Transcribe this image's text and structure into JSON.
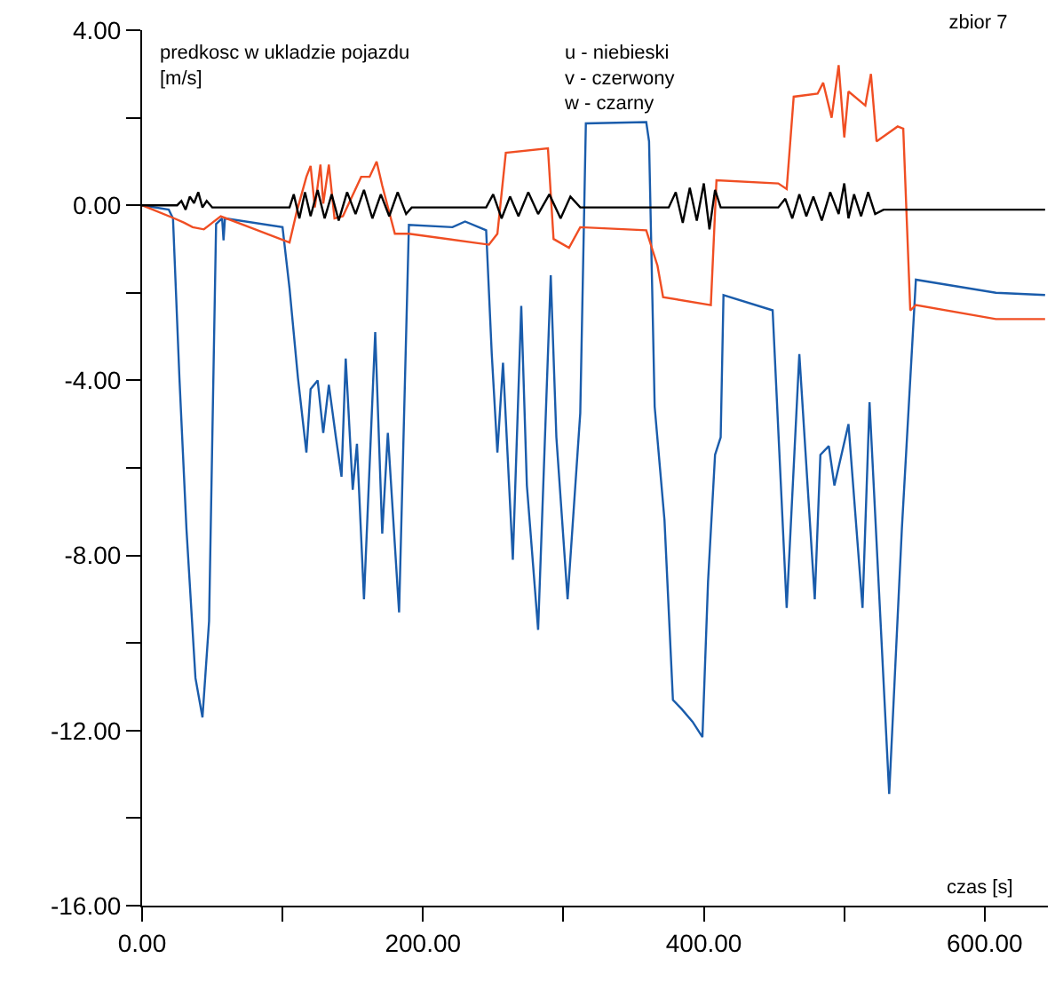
{
  "chart_data": {
    "type": "line",
    "title": "zbior 7",
    "ylabel": "predkosc w ukladzie pojazdu\n[m/s]",
    "xlabel": "czas [s]",
    "annotations": [
      "u - niebieski\nv - czerwony\nw - czarny"
    ],
    "xlim": [
      0,
      645
    ],
    "xticks": [
      {
        "value": 0,
        "label": "0.00"
      },
      {
        "value": 100,
        "label": null
      },
      {
        "value": 200,
        "label": "200.00"
      },
      {
        "value": 300,
        "label": null
      },
      {
        "value": 400,
        "label": "400.00"
      },
      {
        "value": 500,
        "label": null
      },
      {
        "value": 600,
        "label": "600.00"
      }
    ],
    "ylim": [
      -16,
      4
    ],
    "yticks": [
      {
        "value": -16,
        "label": "-16.00"
      },
      {
        "value": -14,
        "label": null
      },
      {
        "value": -12,
        "label": "-12.00"
      },
      {
        "value": -10,
        "label": null
      },
      {
        "value": -8,
        "label": "-8.00"
      },
      {
        "value": -6,
        "label": null
      },
      {
        "value": -4,
        "label": "-4.00"
      },
      {
        "value": -2,
        "label": null
      },
      {
        "value": 0,
        "label": "0.00"
      },
      {
        "value": 2,
        "label": null
      },
      {
        "value": 4,
        "label": "4.00"
      }
    ],
    "marker": "none",
    "line_style": "solid",
    "series": [
      {
        "color": "#1a5cab",
        "x": [
          0,
          19,
          22,
          26.6,
          31.6,
          38,
          43,
          47.7,
          52.7,
          57,
          58,
          59,
          100,
          105,
          111,
          117,
          120,
          125,
          129,
          133,
          138,
          142,
          145,
          150,
          153,
          158,
          166,
          171,
          175,
          183,
          190,
          221,
          230,
          245,
          249,
          253,
          257,
          264,
          270,
          274,
          282,
          291,
          295,
          303,
          312,
          316,
          359,
          361,
          365,
          372,
          378,
          384,
          392,
          399,
          403,
          408,
          412,
          414,
          449,
          459,
          468,
          479,
          483,
          489,
          493,
          503,
          513,
          518,
          532,
          541,
          551,
          608,
          643
        ],
        "values": [
          0,
          -0.1,
          -0.3,
          -3.95,
          -7.4,
          -10.8,
          -11.7,
          -9.5,
          -0.43,
          -0.3,
          -0.8,
          -0.3,
          -0.5,
          -1.9,
          -3.95,
          -5.65,
          -4.2,
          -4.0,
          -5.2,
          -4.1,
          -5.3,
          -6.2,
          -3.5,
          -6.5,
          -5.45,
          -9.0,
          -2.9,
          -7.5,
          -5.2,
          -9.3,
          -0.45,
          -0.5,
          -0.37,
          -0.57,
          -3.4,
          -5.65,
          -3.6,
          -8.1,
          -2.3,
          -6.4,
          -9.7,
          -1.6,
          -5.3,
          -9.0,
          -4.75,
          1.87,
          1.9,
          1.46,
          -4.6,
          -7.2,
          -11.3,
          -11.5,
          -11.8,
          -12.15,
          -8.6,
          -5.7,
          -5.3,
          -2.05,
          -2.4,
          -9.2,
          -3.4,
          -9.0,
          -5.7,
          -5.5,
          -6.4,
          -5.0,
          -9.2,
          -4.5,
          -13.45,
          -7.4,
          -1.7,
          -2.0,
          -2.05
        ]
      },
      {
        "color": "#f04e23",
        "x": [
          0,
          23,
          30,
          36,
          44,
          50,
          56,
          105,
          110,
          117,
          120,
          123,
          127,
          129,
          133,
          137,
          143,
          156,
          162,
          167,
          171,
          180,
          187,
          190,
          247,
          253,
          259,
          289,
          293,
          304,
          312,
          359,
          367,
          371,
          405,
          409,
          453,
          459,
          464,
          481,
          485,
          491,
          496,
          500,
          503,
          515,
          519,
          523,
          538,
          542,
          547,
          551,
          608,
          643
        ],
        "values": [
          0,
          -0.3,
          -0.4,
          -0.5,
          -0.55,
          -0.4,
          -0.25,
          -0.85,
          -0.16,
          0.65,
          0.9,
          -0.05,
          0.93,
          0.04,
          0.93,
          -0.3,
          -0.25,
          0.65,
          0.65,
          1.0,
          0.45,
          -0.65,
          -0.65,
          -0.65,
          -0.9,
          -0.65,
          1.2,
          1.3,
          -0.77,
          -0.97,
          -0.5,
          -0.57,
          -1.38,
          -2.1,
          -2.28,
          0.57,
          0.5,
          0.37,
          2.48,
          2.55,
          2.8,
          2.0,
          3.2,
          1.55,
          2.6,
          2.28,
          3.0,
          1.46,
          1.8,
          1.75,
          -2.4,
          -2.28,
          -2.6,
          -2.6
        ]
      },
      {
        "color": "#000000",
        "x": [
          0,
          25,
          28,
          31,
          34,
          37,
          40,
          43,
          46,
          50,
          105,
          108,
          112,
          116,
          120,
          125,
          130,
          135,
          140,
          146,
          152,
          158,
          164,
          170,
          176,
          182,
          188,
          192,
          245,
          250,
          256,
          262,
          268,
          275,
          282,
          290,
          298,
          305,
          312,
          375,
          380,
          385,
          390,
          395,
          400,
          404,
          408,
          412,
          453,
          458,
          463,
          468,
          473,
          478,
          484,
          490,
          496,
          500,
          503,
          507,
          512,
          517,
          522,
          528,
          643
        ],
        "values": [
          0,
          0,
          0.1,
          -0.1,
          0.2,
          0.05,
          0.3,
          -0.05,
          0.1,
          -0.05,
          -0.05,
          0.25,
          -0.3,
          0.3,
          -0.25,
          0.35,
          -0.3,
          0.25,
          -0.35,
          0.3,
          -0.2,
          0.35,
          -0.3,
          0.25,
          -0.25,
          0.3,
          -0.2,
          -0.05,
          -0.05,
          0.25,
          -0.3,
          0.2,
          -0.25,
          0.3,
          -0.2,
          0.25,
          -0.3,
          0.2,
          -0.05,
          -0.05,
          0.3,
          -0.4,
          0.4,
          -0.35,
          0.5,
          -0.55,
          0.35,
          -0.05,
          -0.05,
          0.15,
          -0.3,
          0.25,
          -0.25,
          0.2,
          -0.35,
          0.3,
          -0.2,
          0.5,
          -0.3,
          0.25,
          -0.25,
          0.3,
          -0.2,
          -0.1,
          -0.1
        ]
      }
    ]
  }
}
